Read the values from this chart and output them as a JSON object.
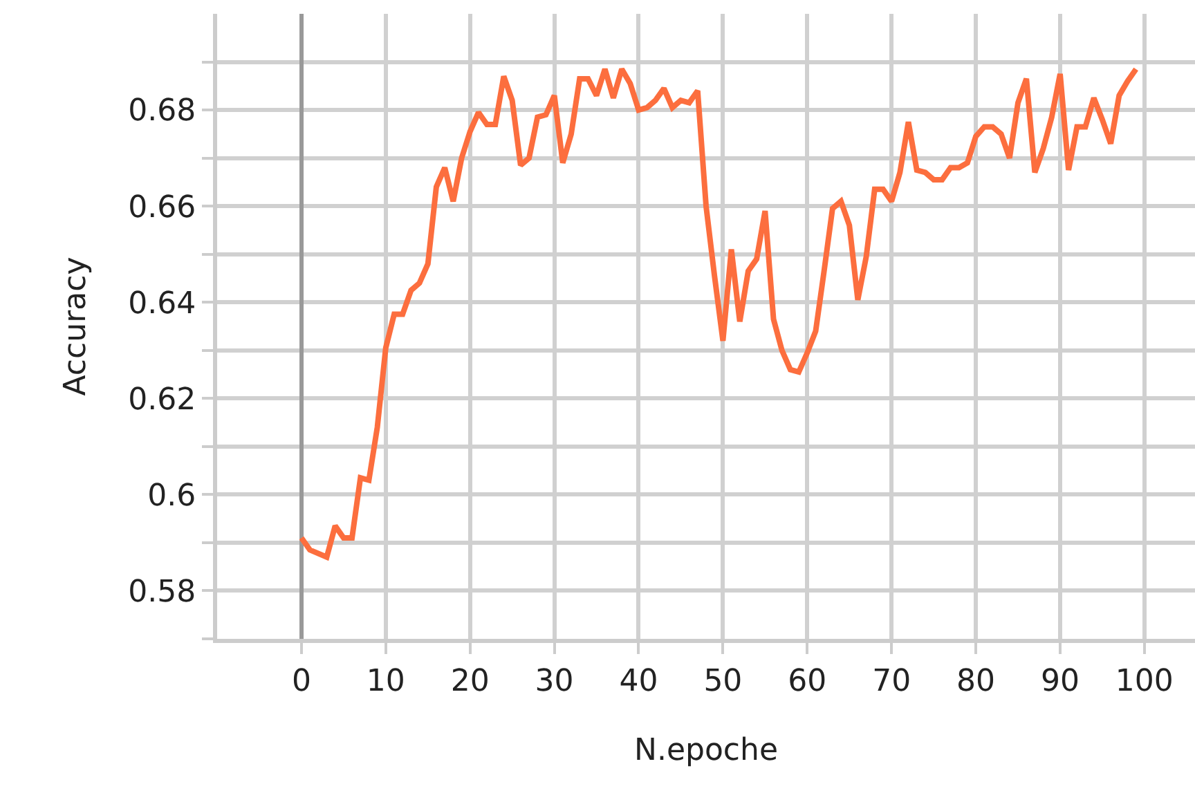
{
  "chart_data": {
    "type": "line",
    "xlabel": "N.epoche",
    "ylabel": "Accuracy",
    "x": [
      0,
      1,
      3,
      4,
      5,
      6,
      7,
      8,
      9,
      10,
      11,
      12,
      13,
      14,
      15,
      16,
      17,
      18,
      19,
      20,
      21,
      22,
      23,
      24,
      25,
      26,
      27,
      28,
      29,
      30,
      31,
      32,
      33,
      34,
      35,
      36,
      37,
      38,
      39,
      40,
      41,
      42,
      43,
      44,
      45,
      46,
      47,
      48,
      49,
      50,
      51,
      52,
      53,
      54,
      55,
      56,
      57,
      58,
      59,
      60,
      61,
      62,
      63,
      64,
      65,
      66,
      67,
      68,
      69,
      70,
      71,
      72,
      73,
      74,
      75,
      76,
      77,
      78,
      79,
      80,
      81,
      82,
      83,
      84,
      85,
      86,
      87,
      88,
      89,
      90,
      91,
      92,
      93,
      94,
      95,
      96,
      97,
      98,
      99
    ],
    "series": [
      {
        "color": "#fc6e3e",
        "values": [
          0.591,
          0.5885,
          0.587,
          0.5935,
          0.591,
          0.591,
          0.6035,
          0.603,
          0.614,
          0.6305,
          0.6375,
          0.6375,
          0.6425,
          0.644,
          0.648,
          0.664,
          0.668,
          0.661,
          0.67,
          0.6755,
          0.6795,
          0.677,
          0.677,
          0.687,
          0.682,
          0.6685,
          0.67,
          0.6785,
          0.679,
          0.683,
          0.669,
          0.675,
          0.6865,
          0.6865,
          0.683,
          0.6885,
          0.6825,
          0.6885,
          0.6855,
          0.68,
          0.6805,
          0.682,
          0.6845,
          0.6805,
          0.682,
          0.6815,
          0.684,
          0.66,
          0.6455,
          0.632,
          0.651,
          0.636,
          0.6465,
          0.649,
          0.659,
          0.6365,
          0.63,
          0.626,
          0.6255,
          0.6295,
          0.634,
          0.6465,
          0.6595,
          0.661,
          0.656,
          0.6405,
          0.6495,
          0.6635,
          0.6635,
          0.661,
          0.667,
          0.6775,
          0.6675,
          0.667,
          0.6655,
          0.6655,
          0.668,
          0.668,
          0.669,
          0.6745,
          0.6765,
          0.6765,
          0.675,
          0.67,
          0.6815,
          0.6865,
          0.667,
          0.672,
          0.6785,
          0.6875,
          0.6675,
          0.6765,
          0.6765,
          0.6825,
          0.678,
          0.673,
          0.683,
          0.686,
          0.6885
        ]
      }
    ],
    "xlim": [
      -10,
      106
    ],
    "xticks": [
      0,
      10,
      20,
      30,
      40,
      50,
      60,
      70,
      80,
      90,
      100
    ],
    "ylim": [
      0.57,
      0.7
    ],
    "yticks": [
      {
        "value": 0.57,
        "label": null
      },
      0.58,
      {
        "value": 0.59,
        "label": null
      },
      0.6,
      {
        "value": 0.61,
        "label": null
      },
      0.62,
      {
        "value": 0.63,
        "label": null
      },
      0.64,
      {
        "value": 0.65,
        "label": null
      },
      0.66,
      {
        "value": 0.67,
        "label": null
      },
      0.68,
      {
        "value": 0.69,
        "label": null
      }
    ],
    "grid": true,
    "marker": "none",
    "line_style": "solid"
  }
}
